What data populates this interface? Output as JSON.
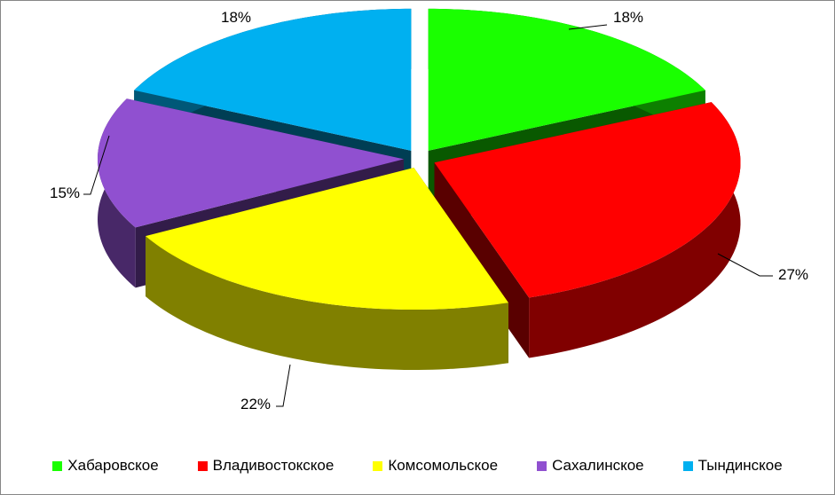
{
  "chart_data": {
    "type": "pie",
    "style": "3d-exploded",
    "categories": [
      "Хабаровское",
      "Владивостокское",
      "Комсомольское",
      "Сахалинское",
      "Тындинское"
    ],
    "values": [
      18,
      27,
      22,
      15,
      18
    ],
    "data_labels": [
      "18%",
      "27%",
      "22%",
      "15%",
      "18%"
    ],
    "colors": [
      "#1aff00",
      "#ff0000",
      "#ffff00",
      "#9050d0",
      "#00b0f0"
    ],
    "legend_position": "bottom"
  }
}
